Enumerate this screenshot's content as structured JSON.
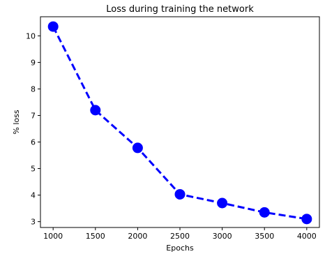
{
  "chart_data": {
    "type": "line",
    "title": "Loss during training the network",
    "xlabel": "Epochs",
    "ylabel": "% loss",
    "x": [
      1000,
      1500,
      2000,
      2500,
      3000,
      3500,
      4000
    ],
    "series": [
      {
        "values": [
          10.35,
          7.2,
          5.78,
          4.03,
          3.7,
          3.35,
          3.1
        ],
        "color": "#0000ff",
        "line_style": "dashed",
        "marker": "circle"
      }
    ],
    "xticks": [
      1000,
      1500,
      2000,
      2500,
      3000,
      3500,
      4000
    ],
    "yticks": [
      3,
      4,
      5,
      6,
      7,
      8,
      9,
      10
    ],
    "xlim": [
      850,
      4150
    ],
    "ylim": [
      2.78,
      10.72
    ],
    "grid": false
  }
}
